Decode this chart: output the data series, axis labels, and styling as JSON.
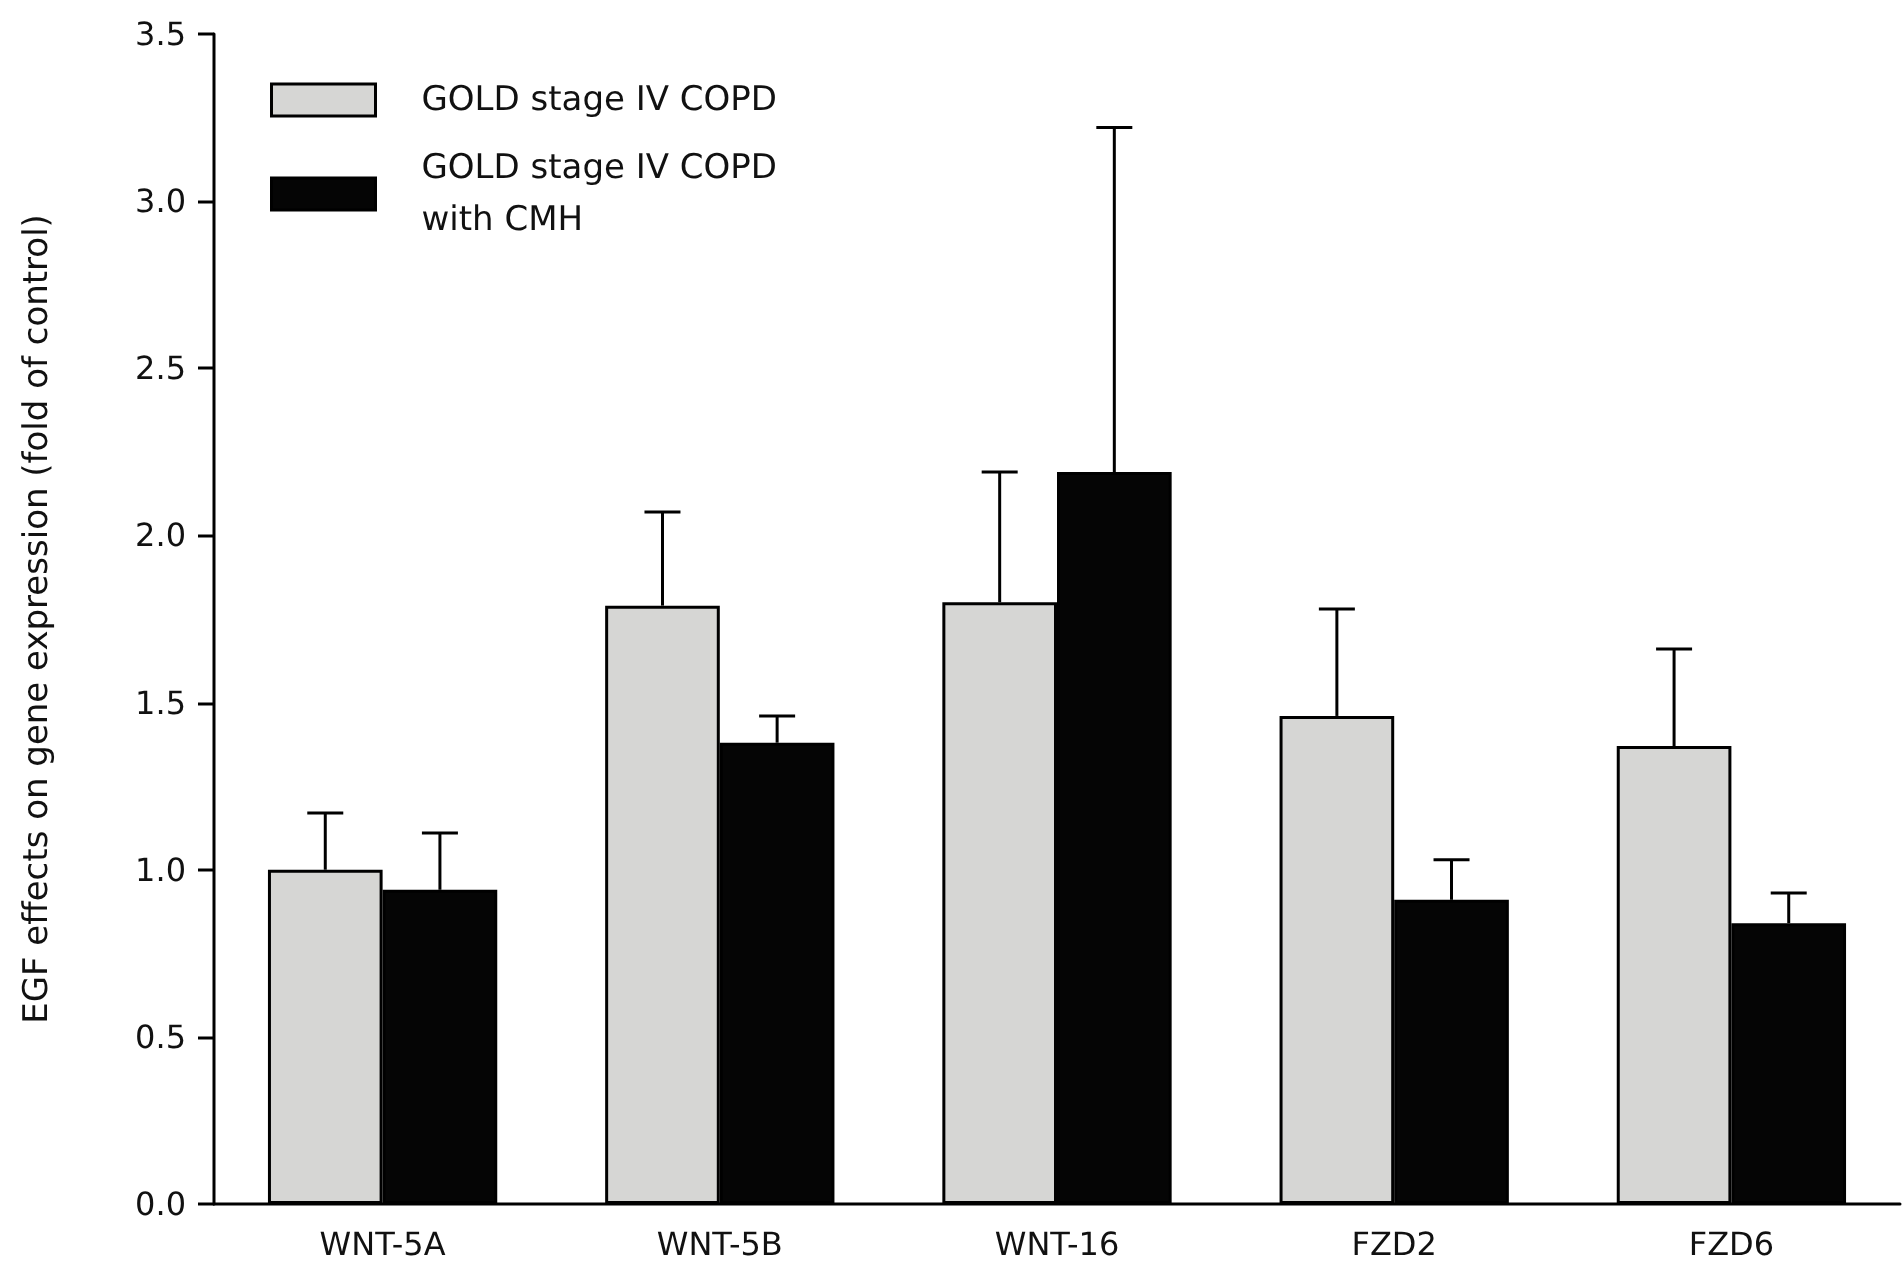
{
  "chart_data": {
    "type": "bar",
    "ylabel": "EGF effects on gene expression (fold of control)",
    "categories": [
      "WNT-5A",
      "WNT-5B",
      "WNT-16",
      "FZD2",
      "FZD6"
    ],
    "series": [
      {
        "name": "GOLD stage IV COPD",
        "color": "#d6d6d4",
        "values": [
          1.0,
          1.79,
          1.8,
          1.46,
          1.37
        ],
        "errors": [
          [
            1.0,
            1.17
          ],
          [
            1.79,
            2.07
          ],
          [
            1.8,
            2.19
          ],
          [
            1.46,
            1.78
          ],
          [
            1.37,
            1.66
          ]
        ]
      },
      {
        "name": "GOLD stage IV COPD with CMH",
        "color": "#050505",
        "values": [
          0.94,
          1.38,
          2.19,
          0.91,
          0.84
        ],
        "errors": [
          [
            0.94,
            1.11
          ],
          [
            1.38,
            1.46
          ],
          [
            2.19,
            3.22
          ],
          [
            0.91,
            1.03
          ],
          [
            0.84,
            0.93
          ]
        ]
      }
    ],
    "ylim": [
      0,
      3.5
    ],
    "yticks": [
      {
        "value": 0,
        "label": "0.0"
      },
      0.5,
      {
        "value": 1,
        "label": "1.0"
      },
      1.5,
      {
        "value": 2,
        "label": "2.0"
      },
      2.5,
      {
        "value": 3,
        "label": "3.0"
      },
      3.5
    ],
    "grid": false,
    "legend": "top left"
  }
}
